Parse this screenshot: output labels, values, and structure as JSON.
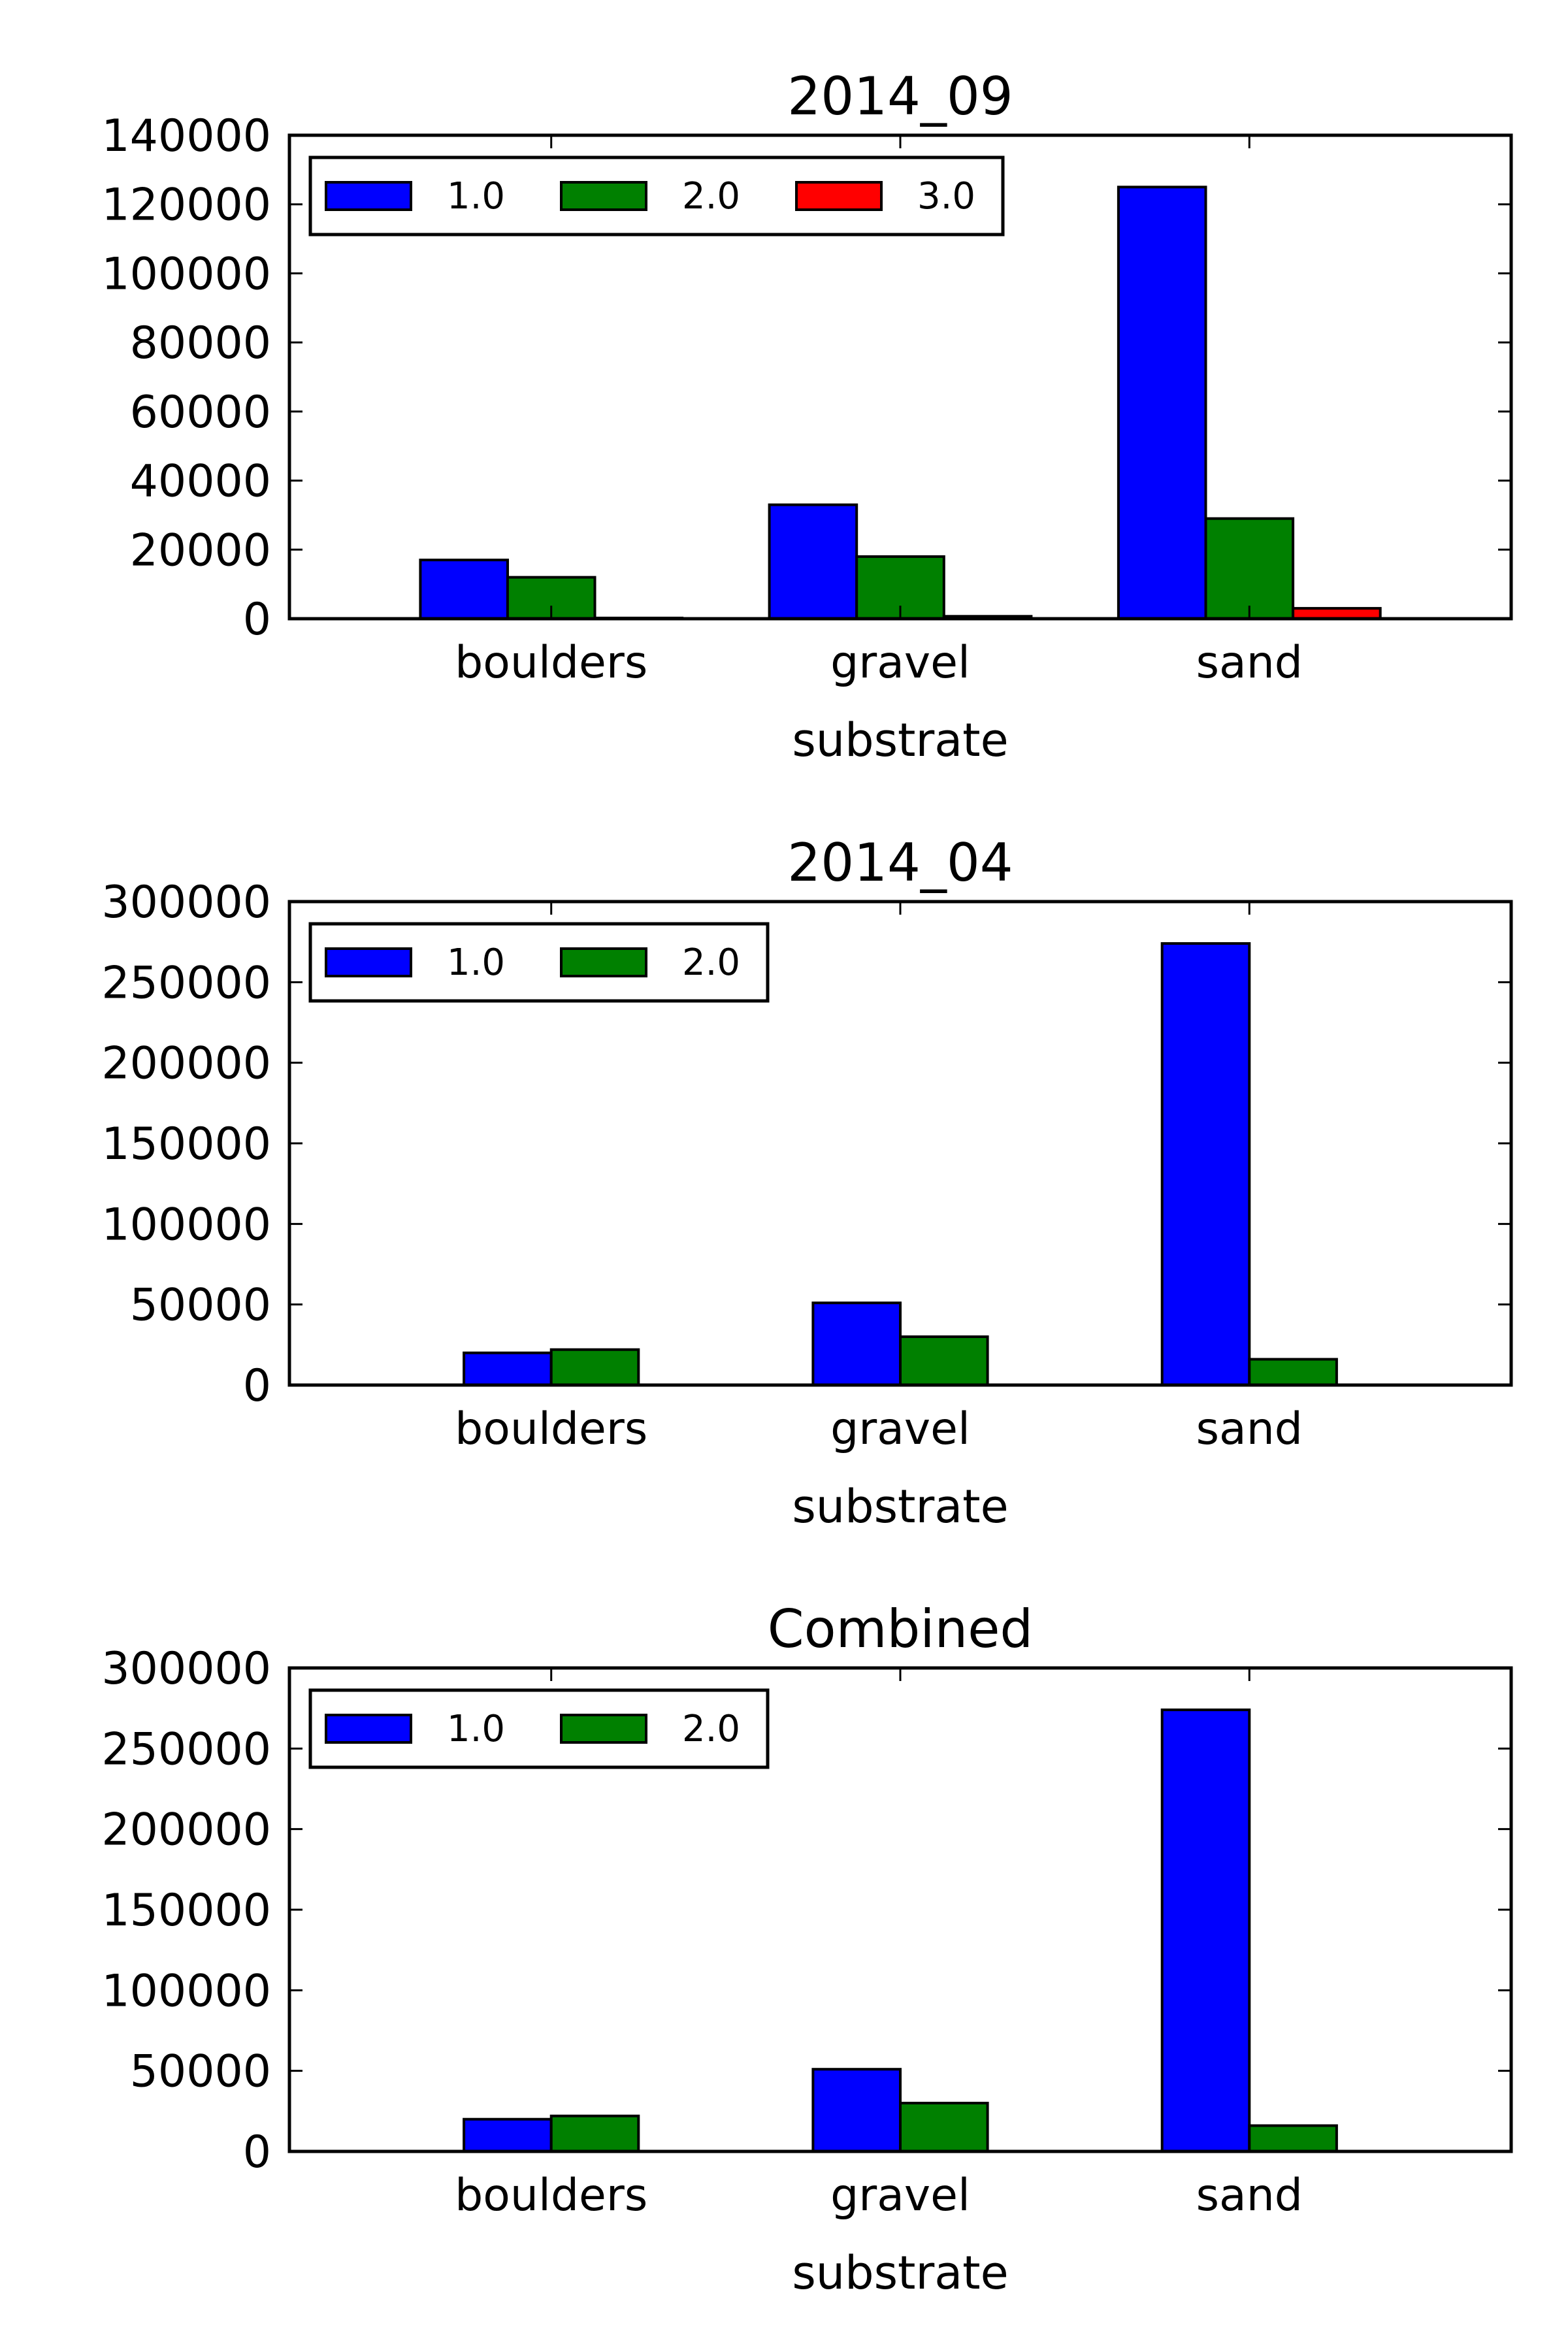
{
  "colors": {
    "1.0": "#0000ff",
    "2.0": "#008000",
    "3.0": "#ff0000"
  },
  "chart_data": [
    {
      "type": "bar",
      "title": "2014_09",
      "xlabel": "substrate",
      "ylabel": "",
      "categories": [
        "boulders",
        "gravel",
        "sand"
      ],
      "series": [
        {
          "name": "1.0",
          "values": [
            17000,
            33000,
            125000
          ]
        },
        {
          "name": "2.0",
          "values": [
            12000,
            18000,
            29000
          ]
        },
        {
          "name": "3.0",
          "values": [
            200,
            700,
            3000
          ]
        }
      ],
      "ylim": [
        0,
        140000
      ],
      "yticks": [
        "0",
        "20000",
        "40000",
        "60000",
        "80000",
        "100000",
        "120000",
        "140000"
      ],
      "legend": "upper-left",
      "grid": false
    },
    {
      "type": "bar",
      "title": "2014_04",
      "xlabel": "substrate",
      "ylabel": "",
      "categories": [
        "boulders",
        "gravel",
        "sand"
      ],
      "series": [
        {
          "name": "1.0",
          "values": [
            20000,
            51000,
            274000
          ]
        },
        {
          "name": "2.0",
          "values": [
            22000,
            30000,
            16000
          ]
        }
      ],
      "ylim": [
        0,
        300000
      ],
      "yticks": [
        "0",
        "50000",
        "100000",
        "150000",
        "200000",
        "250000",
        "300000"
      ],
      "legend": "upper-left",
      "grid": false
    },
    {
      "type": "bar",
      "title": "Combined",
      "xlabel": "substrate",
      "ylabel": "",
      "categories": [
        "boulders",
        "gravel",
        "sand"
      ],
      "series": [
        {
          "name": "1.0",
          "values": [
            20000,
            51000,
            274000
          ]
        },
        {
          "name": "2.0",
          "values": [
            22000,
            30000,
            16000
          ]
        }
      ],
      "ylim": [
        0,
        300000
      ],
      "yticks": [
        "0",
        "50000",
        "100000",
        "150000",
        "200000",
        "250000",
        "300000"
      ],
      "legend": "upper-left",
      "grid": false
    }
  ]
}
